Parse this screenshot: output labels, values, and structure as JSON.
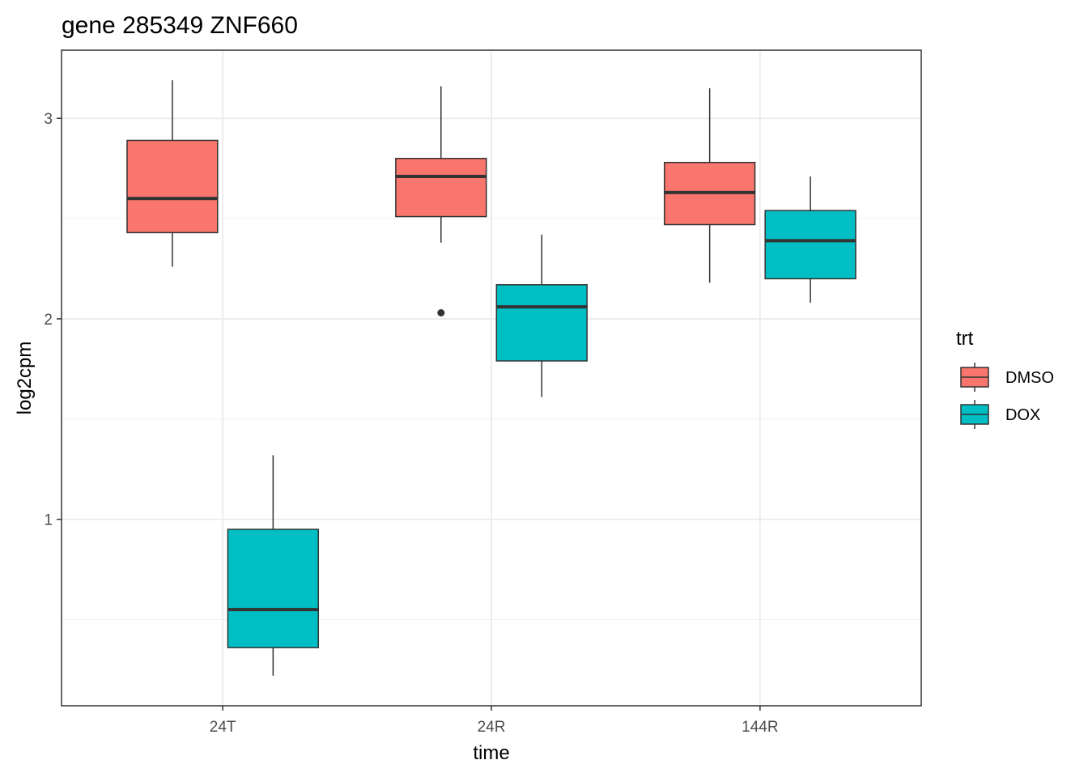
{
  "chart_data": {
    "type": "boxplot",
    "title": "gene 285349 ZNF660",
    "xlabel": "time",
    "ylabel": "log2cpm",
    "categories": [
      "24T",
      "24R",
      "144R"
    ],
    "ylim": [
      0.07,
      3.34
    ],
    "yticks": [
      1,
      2,
      3
    ],
    "grid": true,
    "legend": {
      "title": "trt",
      "placement": "right"
    },
    "series": [
      {
        "name": "DMSO",
        "color": "#F8766D",
        "boxes": [
          {
            "category": "24T",
            "whisker_low": 2.26,
            "q1": 2.43,
            "median": 2.6,
            "q3": 2.89,
            "whisker_high": 3.19,
            "outliers": []
          },
          {
            "category": "24R",
            "whisker_low": 2.38,
            "q1": 2.51,
            "median": 2.71,
            "q3": 2.8,
            "whisker_high": 3.16,
            "outliers": [
              2.03
            ]
          },
          {
            "category": "144R",
            "whisker_low": 2.18,
            "q1": 2.47,
            "median": 2.63,
            "q3": 2.78,
            "whisker_high": 3.15,
            "outliers": []
          }
        ]
      },
      {
        "name": "DOX",
        "color": "#00BFC4",
        "boxes": [
          {
            "category": "24T",
            "whisker_low": 0.22,
            "q1": 0.36,
            "median": 0.55,
            "q3": 0.95,
            "whisker_high": 1.32,
            "outliers": []
          },
          {
            "category": "24R",
            "whisker_low": 1.61,
            "q1": 1.79,
            "median": 2.06,
            "q3": 2.17,
            "whisker_high": 2.42,
            "outliers": []
          },
          {
            "category": "144R",
            "whisker_low": 2.08,
            "q1": 2.2,
            "median": 2.39,
            "q3": 2.54,
            "whisker_high": 2.71,
            "outliers": []
          }
        ]
      }
    ]
  }
}
